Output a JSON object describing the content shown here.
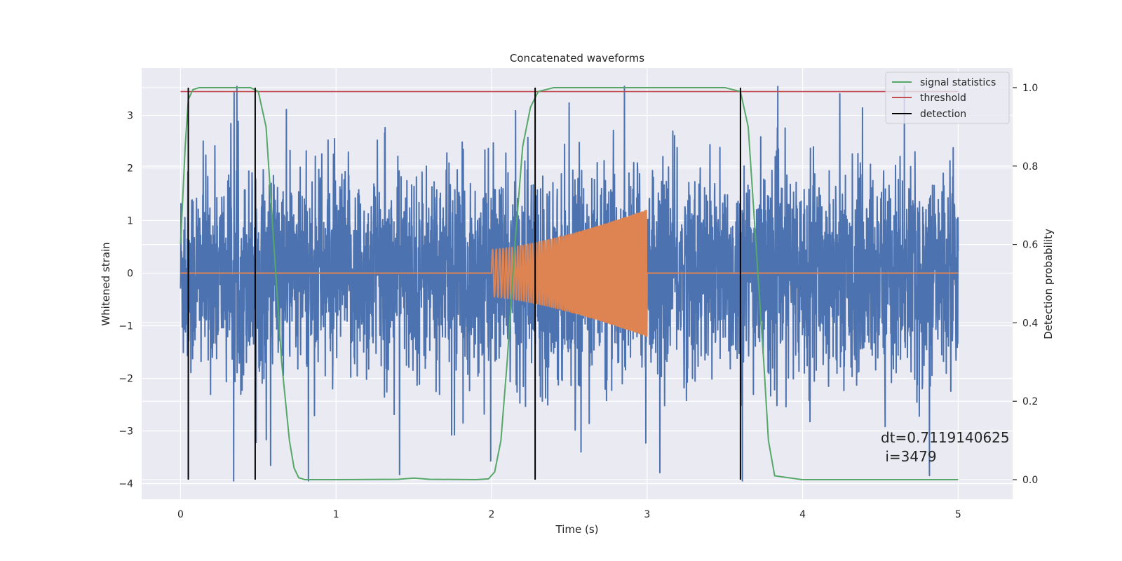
{
  "chart_data": {
    "type": "line",
    "title": "Concatenated waveforms",
    "xlabel": "Time (s)",
    "ylabel": "Whitened strain",
    "ylabel_right": "Detection probability",
    "xlim": [
      -0.25,
      5.35
    ],
    "ylim": [
      -4.3,
      3.9
    ],
    "ylim_right": [
      -0.05,
      1.05
    ],
    "xticks": [
      0,
      1,
      2,
      3,
      4,
      5
    ],
    "yticks": [
      -4,
      -3,
      -2,
      -1,
      0,
      1,
      2,
      3
    ],
    "yticks_right": [
      0.0,
      0.2,
      0.4,
      0.6,
      0.8,
      1.0
    ],
    "xtick_labels": [
      "0",
      "1",
      "2",
      "3",
      "4",
      "5"
    ],
    "ytick_labels": [
      "−4",
      "−3",
      "−2",
      "−1",
      "0",
      "1",
      "2",
      "3"
    ],
    "ytick_right_labels": [
      "0.0",
      "0.2",
      "0.4",
      "0.6",
      "0.8",
      "1.0"
    ],
    "grid": true,
    "legend_position": "top-right",
    "series": [
      {
        "name": "",
        "kind": "noise",
        "color": "#4c72b0",
        "axis": "left",
        "x_range": [
          0,
          5
        ]
      },
      {
        "name": "",
        "kind": "chirp",
        "color": "#dd8452",
        "axis": "left",
        "x_range": [
          2,
          3
        ],
        "amplitude_start": 0.45,
        "amplitude_end": 1.2
      },
      {
        "name": "signal statistics",
        "kind": "line",
        "color": "#55a868",
        "axis": "right",
        "x": [
          0,
          0.03,
          0.05,
          0.08,
          0.12,
          0.2,
          0.3,
          0.45,
          0.5,
          0.55,
          0.6,
          0.65,
          0.7,
          0.73,
          0.76,
          0.8,
          1.0,
          1.4,
          1.5,
          1.6,
          1.9,
          1.98,
          2.02,
          2.06,
          2.1,
          2.15,
          2.2,
          2.25,
          2.3,
          2.4,
          2.8,
          3.5,
          3.6,
          3.65,
          3.7,
          3.75,
          3.78,
          3.82,
          4.0,
          4.5,
          5.0
        ],
        "y": [
          0.6,
          0.85,
          0.97,
          0.995,
          1.0,
          1.0,
          1.0,
          1.0,
          0.99,
          0.9,
          0.6,
          0.3,
          0.1,
          0.03,
          0.005,
          0.0,
          0.0,
          0.001,
          0.004,
          0.001,
          0.0,
          0.002,
          0.02,
          0.1,
          0.3,
          0.6,
          0.85,
          0.95,
          0.99,
          1.0,
          1.0,
          1.0,
          0.99,
          0.9,
          0.6,
          0.3,
          0.1,
          0.01,
          0.0,
          0.0,
          0.0
        ]
      },
      {
        "name": "threshold",
        "kind": "hline",
        "color": "#c44e52",
        "axis": "right",
        "x": [
          0,
          5
        ],
        "y": 0.99
      },
      {
        "name": "detection",
        "kind": "vlines",
        "color": "#000000",
        "axis": "right",
        "x": [
          0.05,
          0.48,
          2.28,
          3.6
        ],
        "y_range": [
          0.0,
          1.0
        ]
      }
    ],
    "annotation": {
      "line1": "dt=0.7119140625",
      "line2": " i=3479"
    }
  }
}
